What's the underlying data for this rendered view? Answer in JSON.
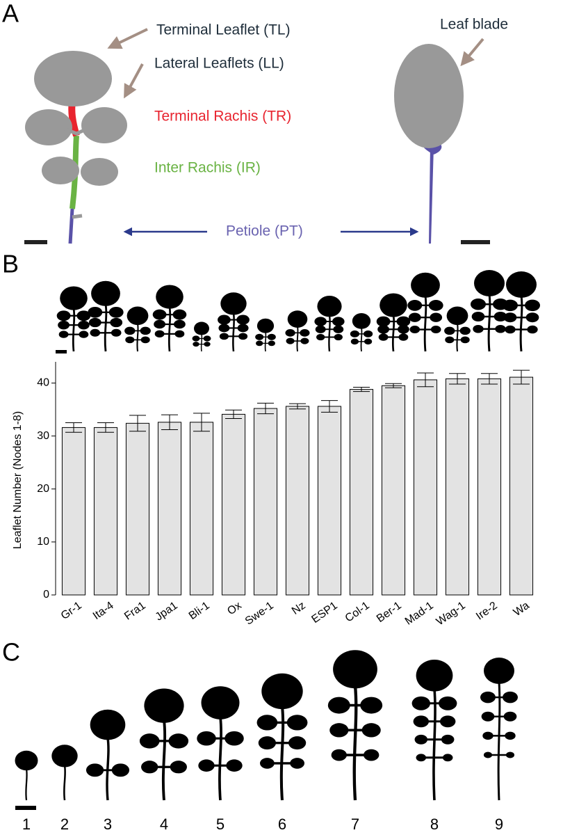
{
  "panel_a": {
    "label": "A",
    "annotations": {
      "terminal_leaflet": "Terminal Leaflet (TL)",
      "lateral_leaflets": "Lateral Leaflets (LL)",
      "terminal_rachis": "Terminal Rachis (TR)",
      "inter_rachis": "Inter Rachis (IR)",
      "petiole": "Petiole (PT)",
      "leaf_blade": "Leaf blade"
    }
  },
  "chart_data": {
    "type": "bar",
    "panel_label": "B",
    "y_label": "Leaflet Number (Nodes 1-8)",
    "categories": [
      "Gr-1",
      "Ita-4",
      "Fra1",
      "Jpa1",
      "Bli-1",
      "Ox",
      "Swe-1",
      "Nz",
      "ESP1",
      "Col-1",
      "Ber-1",
      "Mad-1",
      "Wag-1",
      "Ire-2",
      "Wa"
    ],
    "values": [
      31.6,
      31.6,
      32.4,
      32.6,
      32.6,
      34.1,
      35.2,
      35.6,
      35.6,
      38.8,
      39.5,
      40.6,
      40.8,
      40.8,
      41.1
    ],
    "errors": [
      0.9,
      0.9,
      1.5,
      1.4,
      1.7,
      0.8,
      1.0,
      0.5,
      1.1,
      0.4,
      0.4,
      1.3,
      1.0,
      1.0,
      1.3
    ],
    "color": "#e3e3e3",
    "ylim": [
      0,
      44
    ],
    "yticks": [
      0,
      10,
      20,
      30,
      40
    ],
    "grid": false
  },
  "panel_c": {
    "label": "C",
    "stages": [
      "1",
      "2",
      "3",
      "4",
      "5",
      "6",
      "7",
      "8",
      "9"
    ]
  }
}
